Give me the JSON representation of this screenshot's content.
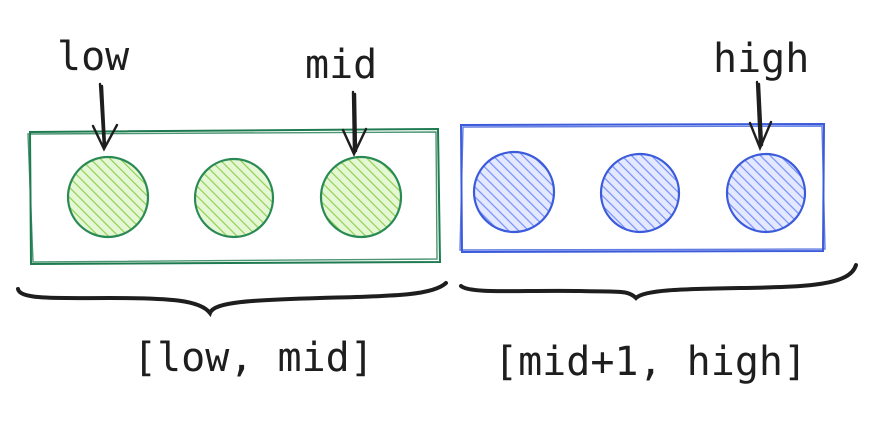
{
  "pointers": {
    "low": "low",
    "mid": "mid",
    "high": "high"
  },
  "ranges": {
    "left": "[low, mid]",
    "right": "[mid+1, high]"
  },
  "groups": {
    "left": {
      "count": 3,
      "stroke": "#1e7a4f",
      "fill": "#8fd14f",
      "circle_stroke": "#2a8a55"
    },
    "right": {
      "count": 3,
      "stroke": "#3b5bdb",
      "fill": "#748ffc",
      "circle_stroke": "#3b5bdb"
    }
  },
  "brace_color": "#1e1e1e",
  "ink": "#1e1e1e"
}
